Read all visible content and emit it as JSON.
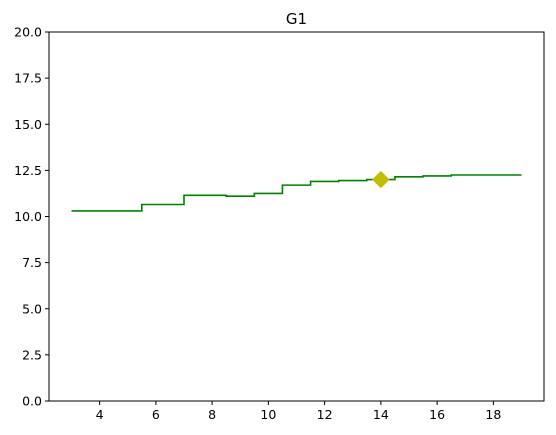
{
  "chart_data": {
    "type": "line",
    "title": "G1",
    "xlabel": "",
    "ylabel": "",
    "xlim": [
      2.2,
      19.8
    ],
    "ylim": [
      0,
      20
    ],
    "xticks": [
      4,
      6,
      8,
      10,
      12,
      14,
      16,
      18
    ],
    "yticks": [
      0,
      2.5,
      5,
      7.5,
      10,
      12.5,
      15,
      17.5,
      20
    ],
    "xtick_labels": [
      "4",
      "6",
      "8",
      "10",
      "12",
      "14",
      "16",
      "18"
    ],
    "ytick_labels": [
      "0.0",
      "2.5",
      "5.0",
      "7.5",
      "10.0",
      "12.5",
      "15.0",
      "17.5",
      "20.0"
    ],
    "grid": false,
    "line_style": "steps",
    "line_color": "#008000",
    "marker_color": "#bfbf00",
    "series": [
      {
        "x": [
          3.0,
          5.5,
          7.0,
          8.5,
          9.5,
          10.5,
          11.5,
          12.5,
          13.5,
          14.5,
          15.5,
          16.5,
          19.0
        ],
        "y": [
          10.3,
          10.65,
          11.15,
          11.1,
          11.25,
          11.7,
          11.9,
          11.95,
          12.0,
          12.15,
          12.2,
          12.25,
          12.25
        ]
      }
    ],
    "highlight_point": {
      "x": 14.0,
      "y": 12.0
    }
  }
}
